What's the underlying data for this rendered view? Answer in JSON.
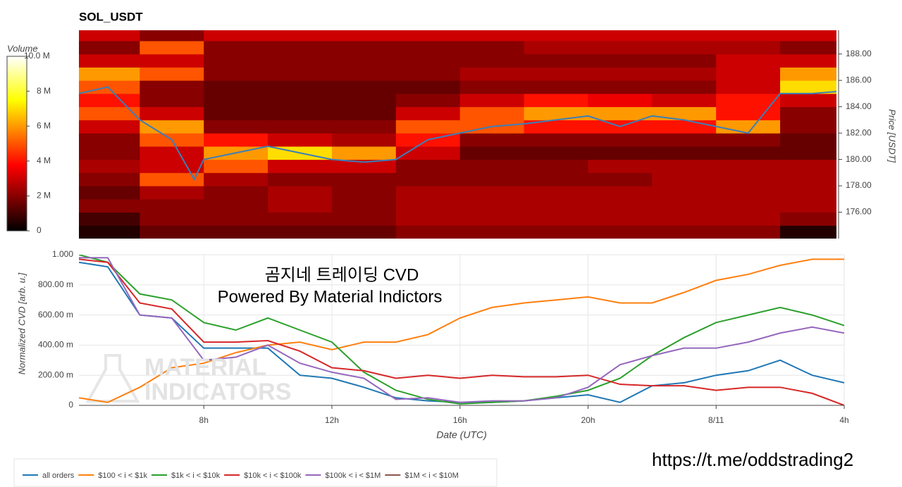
{
  "chart_data": [
    {
      "type": "heatmap",
      "title": "SOL_USDT",
      "y_label": "Price [USDT]",
      "colorbar_label": "Volume",
      "xlim": [
        4.1,
        27.76
      ],
      "ylim": [
        174,
        189.8
      ],
      "yticks": [
        {
          "value": 176,
          "label": "176.00"
        },
        {
          "value": 178,
          "label": "178.00"
        },
        {
          "value": 180,
          "label": "180.00"
        },
        {
          "value": 182,
          "label": "182.00"
        },
        {
          "value": 184,
          "label": "184.00"
        },
        {
          "value": 186,
          "label": "186.00"
        },
        {
          "value": 188,
          "label": "188.00"
        }
      ],
      "zlim": [
        0,
        10000000.0
      ],
      "zticks": [
        0,
        {
          "value": 2000000.0,
          "label": "2 M"
        },
        {
          "value": 4000000.0,
          "label": "4 M"
        },
        {
          "value": 6000000.0,
          "label": "6 M"
        },
        {
          "value": 8000000.0,
          "label": "8 M"
        },
        {
          "value": 10000000.0,
          "label": "10.0 M"
        }
      ],
      "x_edges": [
        4.1,
        6,
        8,
        10,
        12,
        14,
        16,
        18,
        20,
        22,
        24,
        26,
        28
      ],
      "y_edges": [
        174,
        175,
        176,
        177,
        178,
        179,
        180,
        181,
        182,
        183,
        184,
        185,
        186,
        187,
        188,
        189,
        190
      ],
      "z": [
        [
          500000.0,
          1500000.0,
          1500000.0,
          1500000.0,
          1500000.0,
          2000000.0,
          2000000.0,
          2000000.0,
          2000000.0,
          2000000.0,
          2000000.0,
          500000.0
        ],
        [
          1000000.0,
          2000000.0,
          2000000.0,
          2000000.0,
          2000000.0,
          2500000.0,
          2500000.0,
          2500000.0,
          2500000.0,
          2500000.0,
          2500000.0,
          2000000.0
        ],
        [
          2000000.0,
          2000000.0,
          2000000.0,
          2500000.0,
          2000000.0,
          2500000.0,
          2500000.0,
          2500000.0,
          2500000.0,
          2500000.0,
          2500000.0,
          2500000.0
        ],
        [
          1500000.0,
          2500000.0,
          2000000.0,
          2500000.0,
          2000000.0,
          2500000.0,
          2500000.0,
          2500000.0,
          2500000.0,
          2500000.0,
          2500000.0,
          2500000.0
        ],
        [
          2000000.0,
          5000000.0,
          2500000.0,
          2000000.0,
          2000000.0,
          2000000.0,
          2000000.0,
          2000000.0,
          2000000.0,
          2500000.0,
          2500000.0,
          2500000.0
        ],
        [
          2500000.0,
          3000000.0,
          5000000.0,
          3000000.0,
          3000000.0,
          2000000.0,
          2000000.0,
          2000000.0,
          2500000.0,
          2500000.0,
          2500000.0,
          2500000.0
        ],
        [
          2000000.0,
          3000000.0,
          6000000.0,
          7000000.0,
          6000000.0,
          3000000.0,
          1500000.0,
          1500000.0,
          1500000.0,
          1500000.0,
          1500000.0,
          1500000.0
        ],
        [
          2000000.0,
          5000000.0,
          4000000.0,
          3000000.0,
          2500000.0,
          4000000.0,
          2000000.0,
          2000000.0,
          2000000.0,
          2000000.0,
          2000000.0,
          1500000.0
        ],
        [
          3000000.0,
          6000000.0,
          2000000.0,
          2000000.0,
          2000000.0,
          5000000.0,
          5000000.0,
          4000000.0,
          4000000.0,
          4000000.0,
          6000000.0,
          2000000.0
        ],
        [
          5000000.0,
          3000000.0,
          1500000.0,
          1500000.0,
          1500000.0,
          3000000.0,
          5000000.0,
          6000000.0,
          6000000.0,
          6000000.0,
          4000000.0,
          2000000.0
        ],
        [
          4000000.0,
          2000000.0,
          1500000.0,
          1500000.0,
          1500000.0,
          2000000.0,
          3000000.0,
          4000000.0,
          3500000.0,
          3000000.0,
          4000000.0,
          3000000.0
        ],
        [
          5000000.0,
          2000000.0,
          1500000.0,
          1500000.0,
          1500000.0,
          1500000.0,
          2000000.0,
          2000000.0,
          2000000.0,
          2000000.0,
          3000000.0,
          7000000.0
        ],
        [
          6000000.0,
          5000000.0,
          2000000.0,
          2000000.0,
          2000000.0,
          2000000.0,
          2500000.0,
          2500000.0,
          2500000.0,
          2500000.0,
          3000000.0,
          6000000.0
        ],
        [
          3000000.0,
          3000000.0,
          2000000.0,
          2000000.0,
          2000000.0,
          2000000.0,
          2000000.0,
          2000000.0,
          2000000.0,
          2000000.0,
          3000000.0,
          3000000.0
        ],
        [
          2000000.0,
          5000000.0,
          2000000.0,
          2000000.0,
          2000000.0,
          2000000.0,
          2000000.0,
          2500000.0,
          2500000.0,
          2500000.0,
          2500000.0,
          2000000.0
        ],
        [
          3000000.0,
          2000000.0,
          3000000.0,
          3000000.0,
          3000000.0,
          3000000.0,
          3000000.0,
          3000000.0,
          3000000.0,
          3000000.0,
          3000000.0,
          3000000.0
        ]
      ],
      "line": {
        "color": "#3b7fb8",
        "x": [
          4.1,
          5,
          6,
          7,
          7.7,
          8,
          9,
          10,
          11,
          12,
          13,
          14,
          15,
          16,
          17,
          18,
          19,
          20,
          21,
          22,
          23,
          24,
          25,
          26,
          27,
          28
        ],
        "values": [
          185,
          185.5,
          183,
          181.5,
          178.5,
          180,
          180.5,
          181,
          180.5,
          180,
          179.8,
          180,
          181.5,
          182,
          182.5,
          182.7,
          183,
          183.3,
          182.5,
          183.3,
          183,
          182.5,
          182,
          185,
          185,
          185.2
        ]
      }
    },
    {
      "type": "line",
      "x_label": "Date (UTC)",
      "y_label": "Normalized CVD [arb. u.]",
      "annotations": [
        "곰지네 트레이딩 CVD",
        "Powered By Material Indictors"
      ],
      "watermark": [
        "MATERIAL",
        "INDICATORS"
      ],
      "grid": true,
      "legend": "bottom",
      "xlim": [
        4.1,
        28
      ],
      "ylim": [
        0,
        1
      ],
      "xticks": [
        {
          "value": 8,
          "label": "8h"
        },
        {
          "value": 12,
          "label": "12h"
        },
        {
          "value": 16,
          "label": "16h"
        },
        {
          "value": 20,
          "label": "20h"
        },
        {
          "value": 24,
          "label": "8/11"
        },
        {
          "value": 28,
          "label": "4h"
        }
      ],
      "yticks": [
        0,
        {
          "value": 0.2,
          "label": "200.00 m"
        },
        {
          "value": 0.4,
          "label": "400.00 m"
        },
        {
          "value": 0.6,
          "label": "600.00 m"
        },
        {
          "value": 0.8,
          "label": "800.00 m"
        },
        {
          "value": 1,
          "label": "1.000"
        }
      ],
      "x": [
        4.1,
        5,
        6,
        7,
        8,
        9,
        10,
        11,
        12,
        13,
        14,
        15,
        16,
        17,
        18,
        19,
        20,
        21,
        22,
        23,
        24,
        25,
        26,
        27,
        28
      ],
      "series": [
        {
          "name": "all orders",
          "color": "#1f77b4",
          "values": [
            0.95,
            0.92,
            0.6,
            0.58,
            0.38,
            0.38,
            0.38,
            0.2,
            0.18,
            0.12,
            0.05,
            0.03,
            0.02,
            0.02,
            0.03,
            0.05,
            0.07,
            0.02,
            0.13,
            0.15,
            0.2,
            0.23,
            0.3,
            0.2,
            0.15
          ]
        },
        {
          "name": "$100 < i < $1k",
          "color": "#ff7f0e",
          "values": [
            0.05,
            0.02,
            0.12,
            0.25,
            0.28,
            0.35,
            0.4,
            0.42,
            0.37,
            0.42,
            0.42,
            0.47,
            0.58,
            0.65,
            0.68,
            0.7,
            0.72,
            0.68,
            0.68,
            0.75,
            0.83,
            0.87,
            0.93,
            0.97,
            0.97
          ]
        },
        {
          "name": "$1k < i < $10k",
          "color": "#2ca02c",
          "values": [
            1.0,
            0.95,
            0.74,
            0.7,
            0.55,
            0.5,
            0.58,
            0.5,
            0.42,
            0.22,
            0.1,
            0.04,
            0.01,
            0.02,
            0.03,
            0.06,
            0.1,
            0.18,
            0.33,
            0.45,
            0.55,
            0.6,
            0.65,
            0.6,
            0.53
          ]
        },
        {
          "name": "$10k < i < $100k",
          "color": "#d62728",
          "values": [
            0.97,
            0.95,
            0.68,
            0.64,
            0.42,
            0.42,
            0.43,
            0.36,
            0.25,
            0.23,
            0.18,
            0.2,
            0.18,
            0.2,
            0.19,
            0.19,
            0.2,
            0.14,
            0.13,
            0.13,
            0.1,
            0.12,
            0.12,
            0.08,
            0.0
          ]
        },
        {
          "name": "$100k < i < $1M",
          "color": "#9467bd",
          "values": [
            0.98,
            0.98,
            0.6,
            0.58,
            0.3,
            0.32,
            0.4,
            0.28,
            0.22,
            0.18,
            0.04,
            0.05,
            0.02,
            0.03,
            0.03,
            0.05,
            0.12,
            0.27,
            0.33,
            0.38,
            0.38,
            0.42,
            0.48,
            0.52,
            0.48
          ]
        },
        {
          "name": "$1M < i < $10M",
          "color": "#8c564b",
          "values": [
            null,
            null,
            null,
            null,
            null,
            null,
            null,
            null,
            null,
            null,
            null,
            null,
            null,
            null,
            null,
            null,
            null,
            null,
            null,
            null,
            null,
            null,
            null,
            null,
            null
          ]
        }
      ]
    }
  ],
  "footer_link": "https://t.me/oddstrading2"
}
